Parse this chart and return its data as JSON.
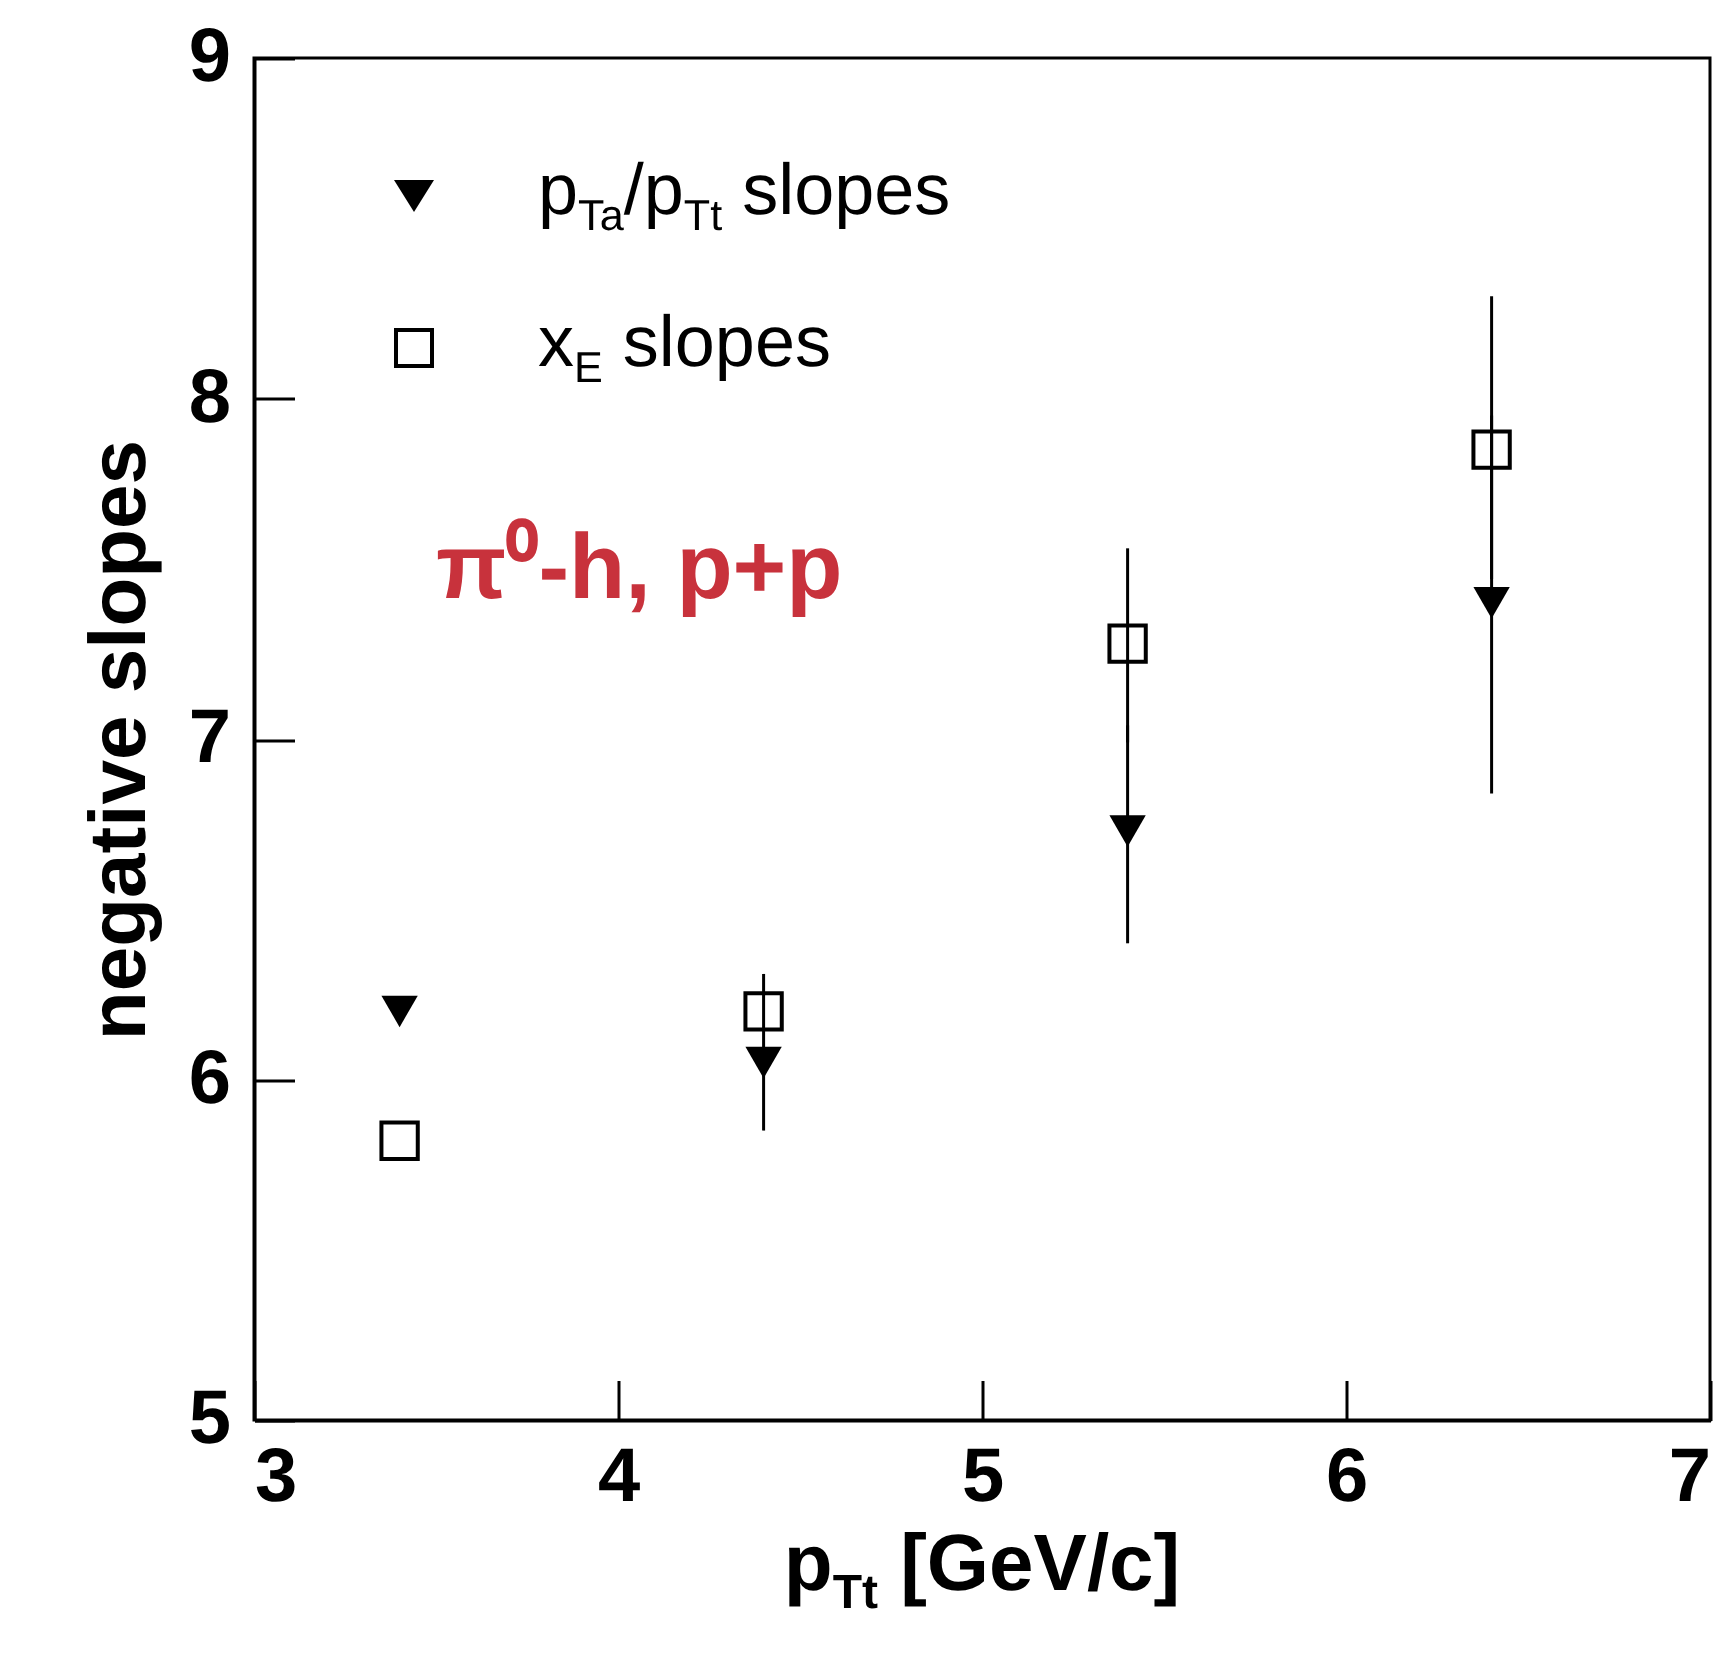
{
  "chart_data": {
    "type": "scatter",
    "xlabel": "p$_{Tt}$ [GeV/c]",
    "ylabel": "negative slopes",
    "xlim": [
      3,
      7
    ],
    "xticks": [
      3,
      4,
      5,
      6,
      7
    ],
    "ylim": [
      5,
      9
    ],
    "yticks": [
      5,
      6,
      7,
      8,
      9
    ],
    "legend": "top left",
    "grid": false,
    "annotations": [
      "π⁰-h, p+p"
    ],
    "x": [
      3.4,
      4.4,
      5.4,
      6.4
    ],
    "series": [
      {
        "name": "p$_{Ta}$/p$_{Tt}$ slopes",
        "color": "#000000",
        "marker": "triangle",
        "values": [
          6.2,
          6.05,
          6.73,
          7.4
        ],
        "errors": [
          null,
          [
            5.85,
            6.05
          ],
          [
            6.4,
            7.04
          ],
          [
            6.84,
            7.95
          ]
        ]
      },
      {
        "name": "x$_{E}$ slopes",
        "color": "#000000",
        "marker": "square",
        "values": [
          5.82,
          6.2,
          7.28,
          7.85
        ],
        "errors": [
          null,
          [
            6.08,
            6.31
          ],
          [
            6.99,
            7.56
          ],
          [
            7.47,
            8.3
          ]
        ]
      }
    ]
  }
}
